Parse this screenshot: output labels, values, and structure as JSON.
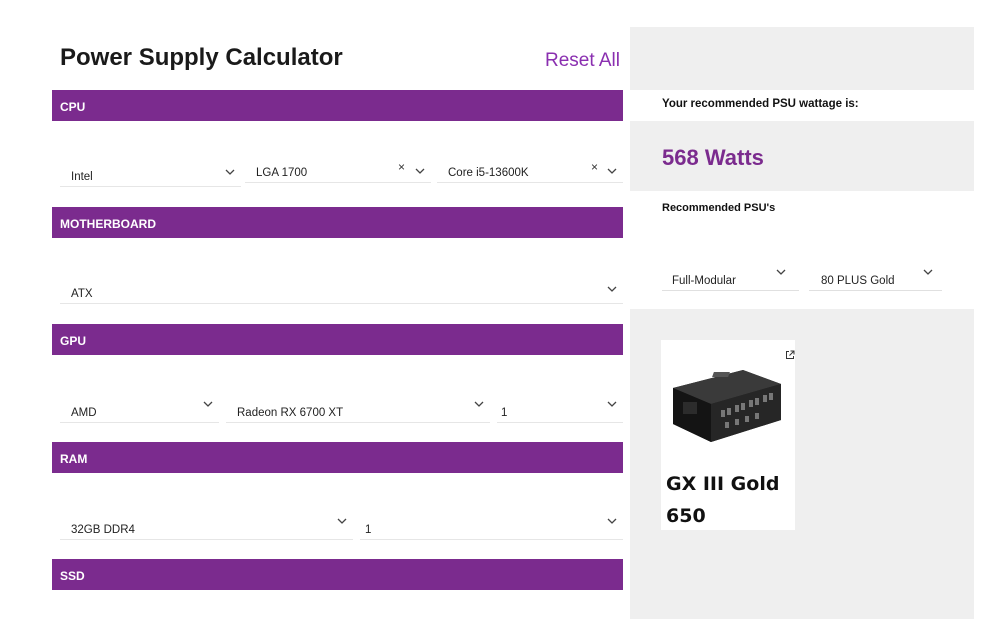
{
  "header": {
    "title": "Power Supply Calculator",
    "reset_label": "Reset All"
  },
  "cpu": {
    "section_label": "CPU",
    "brand": "Intel",
    "socket": "LGA 1700",
    "model": "Core i5-13600K"
  },
  "motherboard": {
    "section_label": "MOTHERBOARD",
    "form_factor": "ATX"
  },
  "gpu": {
    "section_label": "GPU",
    "brand": "AMD",
    "model": "Radeon RX 6700 XT",
    "quantity": "1"
  },
  "ram": {
    "section_label": "RAM",
    "type": "32GB DDR4",
    "quantity": "1"
  },
  "ssd": {
    "section_label": "SSD"
  },
  "result": {
    "label": "Your recommended PSU wattage is:",
    "wattage": "568 Watts",
    "recommended_label": "Recommended PSU's",
    "modularity_filter": "Full-Modular",
    "efficiency_filter": "80 PLUS Gold"
  },
  "products": [
    {
      "name": "GX III Gold 650"
    }
  ],
  "colors": {
    "accent": "#7b2b8e",
    "link": "#8a2fb0",
    "panel_bg": "#efefef"
  },
  "icons": [
    "chevron-down-icon",
    "clear-icon",
    "external-link-icon"
  ]
}
